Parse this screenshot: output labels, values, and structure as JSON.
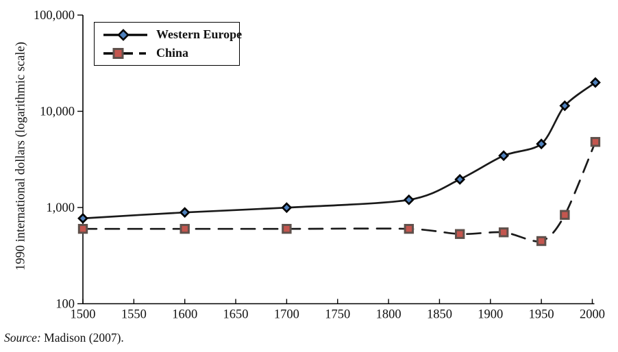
{
  "source": {
    "prefix": "Source:",
    "rest": " Madison (2007)."
  },
  "chart_data": {
    "type": "line",
    "title": "",
    "xlabel": "",
    "ylabel": "1990 international dollars (logarithmic scale)",
    "y_scale": "log10",
    "ylim": [
      100,
      100000
    ],
    "xlim": [
      1500,
      2003
    ],
    "grid": false,
    "legend_position": "top-left",
    "x_ticks": [
      1500,
      1550,
      1600,
      1650,
      1700,
      1750,
      1800,
      1850,
      1900,
      1950,
      2000
    ],
    "y_ticks": [
      {
        "value": 100,
        "label": "100"
      },
      {
        "value": 1000,
        "label": "1,000"
      },
      {
        "value": 10000,
        "label": "10,000"
      },
      {
        "value": 100000,
        "label": "100,000"
      }
    ],
    "x": [
      1500,
      1600,
      1700,
      1820,
      1870,
      1913,
      1950,
      1973,
      2003
    ],
    "series": [
      {
        "name": "Western Europe",
        "values": [
          771,
          889,
          997,
          1202,
          1960,
          3458,
          4579,
          11416,
          19912
        ],
        "line_style": "solid",
        "line_color": "#1a1a1a",
        "marker": "diamond",
        "marker_fill": "#4f81bd",
        "marker_stroke": "#000000"
      },
      {
        "name": "China",
        "values": [
          600,
          600,
          600,
          600,
          530,
          552,
          448,
          838,
          4803
        ],
        "line_style": "dashed",
        "line_color": "#1a1a1a",
        "marker": "square",
        "marker_fill": "#c4564f",
        "marker_stroke": "#5f514c"
      }
    ]
  }
}
